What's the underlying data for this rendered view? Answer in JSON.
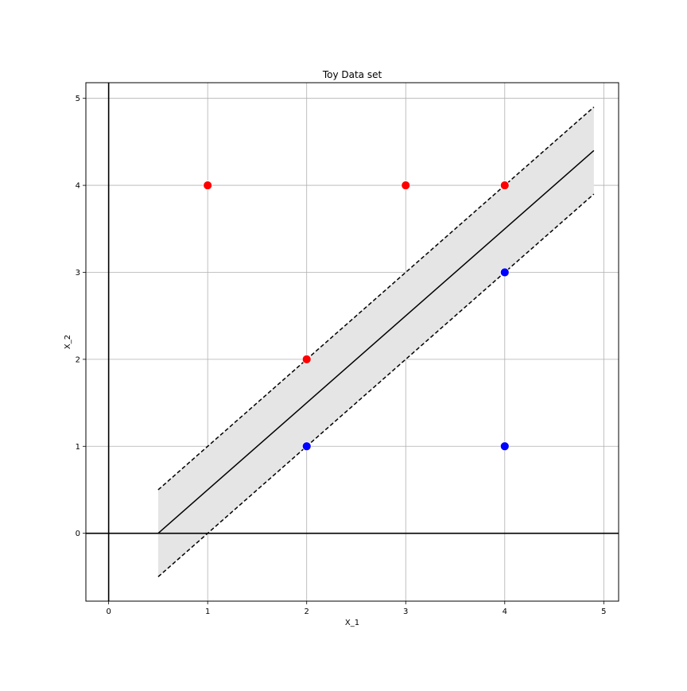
{
  "chart_data": {
    "type": "scatter",
    "title": "Toy Data set",
    "xlabel": "X_1",
    "ylabel": "X_2",
    "xlim": [
      -0.23,
      5.15
    ],
    "ylim": [
      -0.78,
      5.18
    ],
    "xticks": [
      0,
      1,
      2,
      3,
      4,
      5
    ],
    "yticks": [
      0,
      1,
      2,
      3,
      4,
      5
    ],
    "grid": true,
    "series": [
      {
        "color": "#ff0000",
        "points": [
          [
            1,
            4
          ],
          [
            3,
            4
          ],
          [
            4,
            4
          ],
          [
            2,
            2
          ]
        ]
      },
      {
        "color": "#0000ff",
        "points": [
          [
            4,
            3
          ],
          [
            2,
            1
          ],
          [
            4,
            1
          ]
        ]
      }
    ],
    "lines": [
      {
        "style": "solid",
        "x": [
          0.5,
          4.9
        ],
        "y": [
          0.0,
          4.4
        ]
      },
      {
        "style": "dashed",
        "x": [
          0.5,
          4.9
        ],
        "y": [
          0.5,
          4.9
        ]
      },
      {
        "style": "dashed",
        "x": [
          0.5,
          4.9
        ],
        "y": [
          -0.5,
          3.9
        ]
      }
    ],
    "margin_band": {
      "x": [
        0.5,
        4.9
      ],
      "upper": [
        0.5,
        4.9
      ],
      "lower": [
        -0.5,
        3.9
      ],
      "color": "#e5e5e5"
    },
    "reference_lines": {
      "x0": true,
      "y0": true
    }
  }
}
